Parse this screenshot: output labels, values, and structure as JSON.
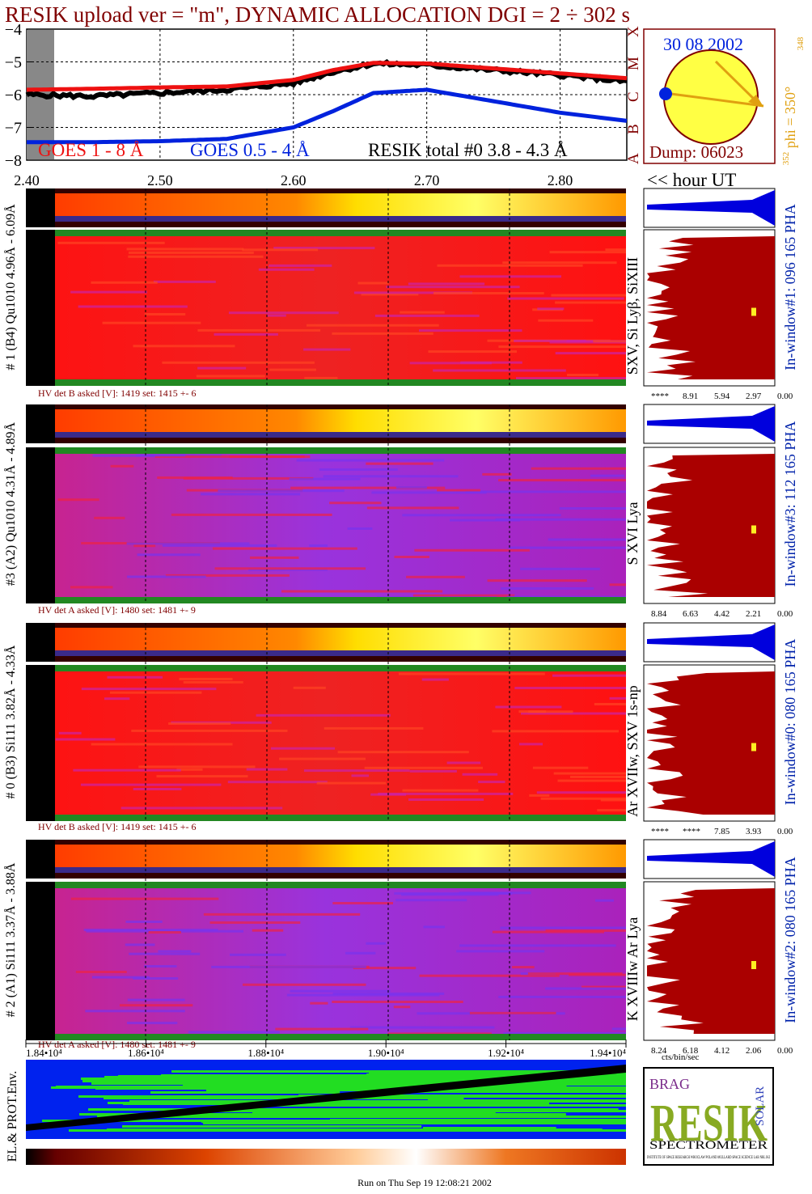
{
  "title": "RESIK upload ver = \"m\", DYNAMIC ALLOCATION  DGI =   2 ÷ 302 s",
  "colors": {
    "title": "#800000",
    "goes_long": "#ee1111",
    "goes_short": "#0022dd",
    "resik_total": "#000000",
    "sun_fill": "#ffff44",
    "sun_border": "#800000",
    "sun_arrow": "#e0a010",
    "navy": "#000080",
    "hist_spec": "#aa0000",
    "hist_pha": "#0000dd",
    "env_blue": "#0022ee",
    "env_green": "#22dd22"
  },
  "lightcurve": {
    "ytick_labels": [
      "-4",
      "-5",
      "-6",
      "-7",
      "-8"
    ],
    "xtick_labels": [
      "2.40",
      "2.50",
      "2.60",
      "2.70",
      "2.80"
    ],
    "xlabel": "<< hour UT",
    "legend_goes_long": "GOES 1 - 8 Å",
    "legend_goes_short": "GOES 0.5 - 4 Å",
    "legend_resik": "RESIK total #0  3.8 - 4.3 Å",
    "class_labels": [
      "X",
      "M",
      "C",
      "B",
      "A"
    ]
  },
  "sun_panel": {
    "date": "30 08 2002",
    "phi_label": "phi = 350°",
    "phi_small_top": "348",
    "phi_small_bottom": "352",
    "dump_label": "Dump: 06023"
  },
  "detectors": [
    {
      "left_label": "# 1 (B4) Qu1010 4.96Å - 6.09Å",
      "hv_label": "HV det B asked [V]:  1419 set:  1415 +-    6",
      "line_label": "SXV, Si Lyβ, SiXIII",
      "window_label": "In-window#1:  096 165 PHA",
      "hist_ticks": [
        "****",
        "8.91",
        "5.94",
        "2.97",
        "0.00"
      ]
    },
    {
      "left_label": "#3 (A2) Qu1010  4.31Å - 4.89Å",
      "hv_label": "HV det A asked [V]:  1480 set:  1481 +-    9",
      "line_label": "S XVI Lya",
      "window_label": "In-window#3:  112 165 PHA",
      "hist_ticks": [
        "8.84",
        "6.63",
        "4.42",
        "2.21",
        "0.00"
      ]
    },
    {
      "left_label": "# 0 (B3) Si111  3.82Å - 4.33Å",
      "hv_label": "HV det B asked [V]:  1419 set:  1415 +-    6",
      "line_label": "Ar XVIIw,  SXV 1s-np",
      "window_label": "In-window#0:  080 165 PHA",
      "hist_ticks": [
        "****",
        "****",
        "7.85",
        "3.93",
        "0.00"
      ]
    },
    {
      "left_label": "# 2 (A1) Si111  3.37Å -  3.88Å",
      "hv_label": "HV det A asked [V]:  1480 set:  1481 +-    9",
      "line_label": "K XVIIIw  Ar Lya",
      "window_label": "In-window#2:  080 165 PHA",
      "hist_ticks": [
        "8.24",
        "6.18",
        "4.12",
        "2.06",
        "0.00"
      ]
    }
  ],
  "bottom_axis": {
    "tick_labels": [
      "1.84•10⁴",
      "1.86•10⁴",
      "1.88•10⁴",
      "1.90•10⁴",
      "1.92•10⁴",
      "1.94•10⁴"
    ],
    "hist_xlabel": "cts/bin/sec"
  },
  "env_panel": {
    "ylabel": "EL.& PROT.Env."
  },
  "logo": {
    "letters": "RESIK",
    "small_left": "BRAG",
    "small_right": "SOLAR",
    "caption": "SPECTROMETER",
    "fineprint": "INSTITUTE OF SPACE RESEARCH WROCLAW POLAND  MULLARD SPACE SCIENCE LAB  NRL  IKI"
  },
  "footer": "Run on Thu Sep 19 12:08:21 2002",
  "chart_data": {
    "type": "line",
    "title": "RESIK upload ver = \"m\", DYNAMIC ALLOCATION  DGI =   2 ÷ 302 s",
    "xlabel": "<< hour UT",
    "ylabel": "",
    "xlim": [
      2.4,
      2.85
    ],
    "ylim": [
      -8,
      -4
    ],
    "x": [
      2.4,
      2.45,
      2.5,
      2.55,
      2.6,
      2.63,
      2.66,
      2.7,
      2.75,
      2.8,
      2.85
    ],
    "series": [
      {
        "name": "GOES 1 - 8 Å",
        "values": [
          -5.85,
          -5.82,
          -5.78,
          -5.75,
          -5.55,
          -5.25,
          -5.03,
          -5.05,
          -5.2,
          -5.35,
          -5.5
        ]
      },
      {
        "name": "GOES 0.5 - 4 Å",
        "values": [
          -7.45,
          -7.45,
          -7.42,
          -7.35,
          -7.0,
          -6.5,
          -5.95,
          -5.85,
          -6.2,
          -6.55,
          -6.8
        ]
      },
      {
        "name": "RESIK total #0  3.8 - 4.3 Å",
        "values": [
          -6.0,
          -6.05,
          -5.95,
          -5.85,
          -5.65,
          -5.3,
          -5.05,
          -5.1,
          -5.25,
          -5.4,
          -5.6
        ]
      }
    ]
  }
}
